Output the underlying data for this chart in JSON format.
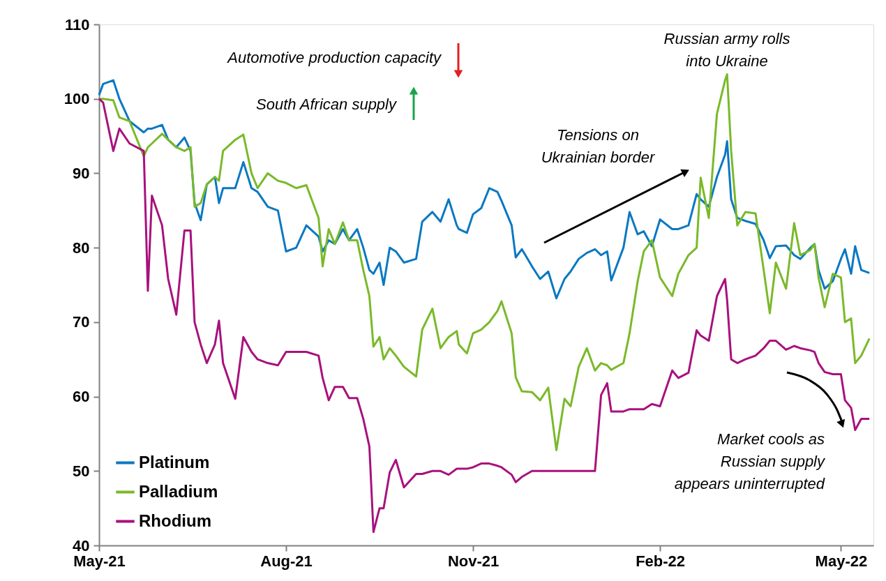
{
  "chart_data": {
    "type": "line",
    "x": [
      "2021-05-01",
      "2021-05-03",
      "2021-05-08",
      "2021-05-11",
      "2021-05-16",
      "2021-05-23",
      "2021-05-25",
      "2021-05-27",
      "2021-06-01",
      "2021-06-04",
      "2021-06-08",
      "2021-06-12",
      "2021-06-15",
      "2021-06-17",
      "2021-06-20",
      "2021-06-23",
      "2021-06-27",
      "2021-06-29",
      "2021-07-01",
      "2021-07-07",
      "2021-07-11",
      "2021-07-15",
      "2021-07-18",
      "2021-07-23",
      "2021-07-28",
      "2021-08-01",
      "2021-08-06",
      "2021-08-11",
      "2021-08-17",
      "2021-08-19",
      "2021-08-22",
      "2021-08-25",
      "2021-08-29",
      "2021-09-01",
      "2021-09-05",
      "2021-09-08",
      "2021-09-11",
      "2021-09-13",
      "2021-09-16",
      "2021-09-18",
      "2021-09-21",
      "2021-09-24",
      "2021-09-28",
      "2021-10-04",
      "2021-10-07",
      "2021-10-12",
      "2021-10-16",
      "2021-10-20",
      "2021-10-24",
      "2021-10-25",
      "2021-10-29",
      "2021-11-01",
      "2021-11-05",
      "2021-11-09",
      "2021-11-13",
      "2021-11-15",
      "2021-11-20",
      "2021-11-22",
      "2021-11-25",
      "2021-11-30",
      "2021-12-04",
      "2021-12-08",
      "2021-12-12",
      "2021-12-16",
      "2021-12-19",
      "2021-12-23",
      "2021-12-27",
      "2021-12-31",
      "2022-01-03",
      "2022-01-06",
      "2022-01-08",
      "2022-01-14",
      "2022-01-17",
      "2022-01-21",
      "2022-01-24",
      "2022-01-28",
      "2022-02-01",
      "2022-02-07",
      "2022-02-10",
      "2022-02-15",
      "2022-02-19",
      "2022-02-21",
      "2022-02-25",
      "2022-03-01",
      "2022-03-05",
      "2022-03-06",
      "2022-03-08",
      "2022-03-11",
      "2022-03-15",
      "2022-03-20",
      "2022-03-24",
      "2022-03-27",
      "2022-03-30",
      "2022-04-04",
      "2022-04-08",
      "2022-04-11",
      "2022-04-16",
      "2022-04-18",
      "2022-04-20",
      "2022-04-23",
      "2022-04-27",
      "2022-05-01",
      "2022-05-03",
      "2022-05-06",
      "2022-05-08",
      "2022-05-11",
      "2022-05-15"
    ],
    "series": [
      {
        "name": "Platinum",
        "color": "#0a78c2",
        "values": [
          100.5,
          102,
          102.5,
          100,
          97,
          95.5,
          96,
          96,
          96.5,
          94.5,
          93.5,
          94.8,
          93,
          86,
          83.7,
          88.5,
          89.5,
          86,
          88,
          88,
          91.5,
          88,
          87.5,
          85.5,
          85,
          79.5,
          80,
          83,
          81.5,
          79.5,
          81,
          80.5,
          82.5,
          81,
          82.5,
          80,
          77,
          76.5,
          78,
          75,
          80,
          79.5,
          78,
          78.5,
          83.5,
          84.8,
          83.5,
          86.5,
          83,
          82.5,
          82,
          84.5,
          85.3,
          88,
          87.5,
          86.3,
          83,
          78.7,
          79.8,
          77.5,
          75.8,
          76.8,
          73.2,
          75.8,
          76.8,
          78.5,
          79.3,
          79.8,
          79,
          79.5,
          75.6,
          80,
          84.8,
          81.8,
          82.2,
          80.2,
          83.8,
          82.5,
          82.5,
          83,
          87.2,
          86.5,
          85.5,
          89.5,
          92.5,
          94.3,
          86.5,
          84,
          83.6,
          83.2,
          81,
          78.6,
          80.2,
          80.3,
          79,
          78.5,
          80,
          80.5,
          77,
          74.5,
          75.5,
          78.5,
          79.8,
          76.5,
          80.2,
          77,
          76.6
        ]
      },
      {
        "name": "Palladium",
        "color": "#7ab929",
        "values": [
          100,
          100,
          99.8,
          97.5,
          97,
          92.3,
          93.5,
          94,
          95.3,
          94.5,
          93.5,
          93,
          93.5,
          85.5,
          86,
          88.5,
          89.5,
          89,
          93,
          94.5,
          95.2,
          90,
          88,
          90,
          89,
          88.7,
          88,
          88.4,
          84,
          77.5,
          82.5,
          80.5,
          83.4,
          81,
          81,
          77,
          73.5,
          66.7,
          68,
          65,
          66.5,
          65.5,
          64,
          62.7,
          69,
          71.8,
          66.5,
          68,
          68.8,
          67,
          65.8,
          68.5,
          69,
          70,
          71.5,
          72.8,
          68.5,
          62.6,
          60.7,
          60.6,
          59.5,
          61.2,
          52.8,
          59.7,
          58.7,
          64,
          66.5,
          63.5,
          64.5,
          64.2,
          63.6,
          64.5,
          68.5,
          75.5,
          79.5,
          81,
          76,
          73.5,
          76.5,
          79,
          80,
          89.4,
          84,
          98,
          102.5,
          103.3,
          93,
          83,
          84.8,
          84.6,
          77,
          71.2,
          78,
          74.5,
          83.3,
          79,
          79.7,
          80.5,
          76,
          72,
          76.5,
          76,
          70,
          70.5,
          64.5,
          65.5,
          67.8
        ]
      },
      {
        "name": "Rhodium",
        "color": "#a8117e",
        "values": [
          100,
          99.5,
          93,
          96,
          94,
          93,
          74.2,
          87,
          83,
          75.8,
          71,
          82.3,
          82.3,
          70,
          67,
          64.5,
          67,
          70.2,
          64.5,
          59.7,
          68,
          66,
          65,
          64.5,
          64.2,
          66,
          66,
          66,
          65.5,
          62.5,
          59.5,
          61.3,
          61.3,
          59.8,
          59.8,
          57,
          53.3,
          41.8,
          45,
          45,
          49.8,
          51.5,
          47.8,
          49.6,
          49.6,
          50,
          50,
          49.5,
          50.3,
          50.3,
          50.3,
          50.5,
          51,
          51,
          50.7,
          50.5,
          49.5,
          48.5,
          49.2,
          50,
          50,
          50,
          50,
          50,
          50,
          50,
          50,
          50,
          60.2,
          61.8,
          58,
          58,
          58.3,
          58.3,
          58.3,
          59,
          58.7,
          63.5,
          62.5,
          63.2,
          68.9,
          68.2,
          67.5,
          73.5,
          75.8,
          73,
          65,
          64.5,
          65,
          65.5,
          66.5,
          67.5,
          67.5,
          66.3,
          66.8,
          66.5,
          66.2,
          66,
          64.5,
          63.3,
          63,
          63,
          59.5,
          58.5,
          55.5,
          57,
          57
        ]
      }
    ],
    "xlim": [
      "2021-05-01",
      "2022-05-17"
    ],
    "xticks": [
      {
        "value": "2021-05-01",
        "label": "May-21"
      },
      {
        "value": "2021-08-01",
        "label": "Aug-21"
      },
      {
        "value": "2021-11-01",
        "label": "Nov-21"
      },
      {
        "value": "2022-02-01",
        "label": "Feb-22"
      },
      {
        "value": "2022-05-01",
        "label": "May-22"
      }
    ],
    "ylim": [
      40,
      110
    ],
    "yticks": [
      40,
      50,
      60,
      70,
      80,
      90,
      100,
      110
    ],
    "annotations": [
      "Automotive production capacity",
      "South African supply",
      "Russian army rolls\ninto Ukraine",
      "Tensions on\nUkrainian border",
      "Market cools as\nRussian supply\nappears uninterrupted"
    ],
    "legend": "bottom left",
    "grid": false,
    "marker": "none",
    "line_style": "solid"
  }
}
